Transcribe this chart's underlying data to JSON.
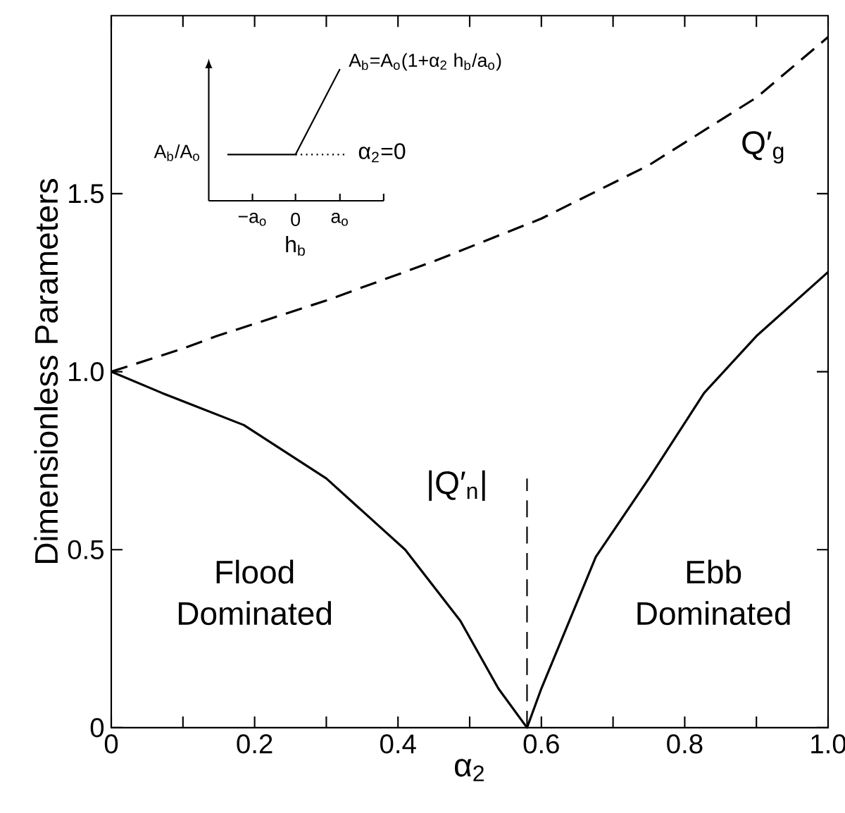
{
  "chart_data": {
    "type": "line",
    "xlabel": "α$_{2}$",
    "ylabel": "Dimensionless  Parameters",
    "xlim": [
      0,
      1.0
    ],
    "ylim": [
      0,
      2.0
    ],
    "xticks": [
      0,
      {
        "value": 0.1,
        "label": null
      },
      0.2,
      {
        "value": 0.3,
        "label": null
      },
      0.4,
      {
        "value": 0.5,
        "label": null
      },
      0.6,
      {
        "value": 0.7,
        "label": null
      },
      0.8,
      {
        "value": 0.9,
        "label": null
      },
      {
        "value": 1.0,
        "label": "1.0"
      }
    ],
    "yticks": [
      0,
      0.5,
      {
        "value": 1.0,
        "label": "1.0"
      },
      1.5
    ],
    "legend": false,
    "grid": false,
    "marker": "none",
    "series": [
      {
        "name": "Q′$_{g}$",
        "color": "#000000",
        "line_style": "dashed",
        "x": [
          0,
          0.1,
          0.147,
          0.3,
          0.45,
          0.6,
          0.75,
          0.9,
          1.0
        ],
        "values": [
          1.0,
          1.065,
          1.1,
          1.2,
          1.31,
          1.43,
          1.58,
          1.77,
          1.94
        ]
      },
      {
        "name": "|Q′$_{n}$|",
        "color": "#000000",
        "line_style": "solid",
        "x": [
          0,
          0.071,
          0.185,
          0.3,
          0.41,
          0.487,
          0.54,
          0.58,
          0.6,
          0.676,
          0.75,
          0.827,
          0.9,
          1.0
        ],
        "values": [
          1.0,
          0.94,
          0.85,
          0.7,
          0.5,
          0.3,
          0.11,
          0,
          0.11,
          0.48,
          0.7,
          0.94,
          1.1,
          1.28
        ]
      },
      {
        "color": "#000000",
        "line_style": "dashed",
        "x": [
          0.58,
          0.58
        ],
        "values": [
          0,
          0.7
        ]
      }
    ],
    "annotations": [
      "Flood Dominated",
      "Ebb Dominated",
      "A$_{b}$/A$_{o}$",
      "α$_{2}$=0",
      "A$_{b}$=A$_{o}$(1+α$_{2}$ h$_{b}$/a$_{o}$)",
      "−a$_{o}$",
      "0",
      "a$_{o}$",
      "h$_{b}$"
    ]
  }
}
